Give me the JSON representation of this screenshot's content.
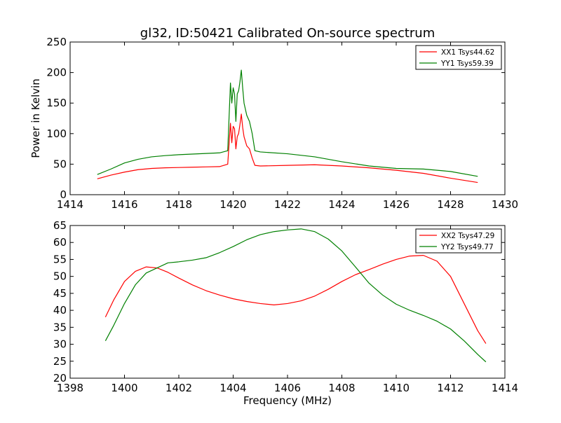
{
  "title": "gl32, ID:50421 Calibrated On-source spectrum",
  "chart_data": [
    {
      "type": "line",
      "ylabel": "Power in Kelvin",
      "xlabel": "",
      "xlim": [
        1414,
        1430
      ],
      "ylim": [
        0,
        250
      ],
      "x_ticks": [
        1414,
        1416,
        1418,
        1420,
        1422,
        1424,
        1426,
        1428,
        1430
      ],
      "y_ticks": [
        0,
        50,
        100,
        150,
        200,
        250
      ],
      "legend": "top-right",
      "series": [
        {
          "name": "XX1 Tsys44.62",
          "color": "#ff0000",
          "x": [
            1415.0,
            1415.5,
            1416.0,
            1416.5,
            1417.0,
            1417.5,
            1418.0,
            1418.5,
            1419.0,
            1419.5,
            1419.8,
            1419.9,
            1419.95,
            1420.0,
            1420.05,
            1420.1,
            1420.15,
            1420.2,
            1420.25,
            1420.3,
            1420.35,
            1420.4,
            1420.5,
            1420.6,
            1420.7,
            1420.8,
            1421.0,
            1422.0,
            1423.0,
            1424.0,
            1425.0,
            1426.0,
            1427.0,
            1428.0,
            1429.0
          ],
          "y": [
            26,
            32,
            37,
            41,
            43,
            44,
            44.5,
            45,
            45.5,
            46,
            50,
            117,
            85,
            112,
            108,
            75,
            95,
            100,
            115,
            132,
            110,
            95,
            80,
            75,
            60,
            48,
            47,
            48,
            49,
            47,
            44,
            40,
            35,
            27,
            20
          ]
        },
        {
          "name": "YY1 Tsys59.39",
          "color": "#008000",
          "x": [
            1415.0,
            1415.5,
            1416.0,
            1416.5,
            1417.0,
            1417.5,
            1418.0,
            1418.5,
            1419.0,
            1419.5,
            1419.8,
            1419.9,
            1419.95,
            1420.0,
            1420.05,
            1420.1,
            1420.15,
            1420.2,
            1420.25,
            1420.3,
            1420.35,
            1420.4,
            1420.5,
            1420.6,
            1420.7,
            1420.8,
            1421.0,
            1422.0,
            1423.0,
            1424.0,
            1425.0,
            1426.0,
            1427.0,
            1428.0,
            1429.0
          ],
          "y": [
            33,
            42,
            52,
            58,
            62,
            64,
            65.5,
            66.5,
            67.5,
            68.5,
            72,
            183,
            150,
            175,
            165,
            120,
            165,
            170,
            185,
            204,
            175,
            150,
            130,
            120,
            100,
            72,
            70,
            67,
            62,
            54,
            47,
            43,
            42,
            38,
            30
          ]
        }
      ]
    },
    {
      "type": "line",
      "xlabel": "Frequency (MHz)",
      "ylabel": "",
      "xlim": [
        1398,
        1414
      ],
      "ylim": [
        20,
        65
      ],
      "x_ticks": [
        1398,
        1400,
        1402,
        1404,
        1406,
        1408,
        1410,
        1412,
        1414
      ],
      "y_ticks": [
        20,
        25,
        30,
        35,
        40,
        45,
        50,
        55,
        60,
        65
      ],
      "legend": "top-right",
      "series": [
        {
          "name": "XX2 Tsys47.29",
          "color": "#ff0000",
          "x": [
            1399.3,
            1399.6,
            1400.0,
            1400.4,
            1400.8,
            1401.2,
            1401.6,
            1402.0,
            1402.5,
            1403.0,
            1403.5,
            1404.0,
            1404.5,
            1405.0,
            1405.5,
            1406.0,
            1406.5,
            1407.0,
            1407.5,
            1408.0,
            1408.5,
            1409.0,
            1409.5,
            1410.0,
            1410.5,
            1411.0,
            1411.5,
            1412.0,
            1412.5,
            1413.0,
            1413.3
          ],
          "y": [
            38,
            43,
            48.5,
            51.5,
            52.8,
            52.5,
            51.2,
            49.5,
            47.5,
            45.8,
            44.5,
            43.4,
            42.6,
            42.0,
            41.6,
            42.0,
            42.8,
            44.2,
            46.2,
            48.5,
            50.5,
            52.0,
            53.6,
            55.0,
            56.0,
            56.2,
            54.5,
            50.0,
            42.0,
            34.0,
            30.2
          ]
        },
        {
          "name": "YY2 Tsys49.77",
          "color": "#008000",
          "x": [
            1399.3,
            1399.6,
            1400.0,
            1400.4,
            1400.8,
            1401.2,
            1401.6,
            1402.0,
            1402.5,
            1403.0,
            1403.5,
            1404.0,
            1404.5,
            1405.0,
            1405.5,
            1406.0,
            1406.5,
            1407.0,
            1407.5,
            1408.0,
            1408.5,
            1409.0,
            1409.5,
            1410.0,
            1410.5,
            1411.0,
            1411.5,
            1412.0,
            1412.5,
            1413.0,
            1413.3
          ],
          "y": [
            31,
            35.5,
            42,
            47.5,
            51,
            52.5,
            54,
            54.3,
            54.8,
            55.5,
            57,
            58.8,
            60.8,
            62.3,
            63.2,
            63.7,
            64.0,
            63.2,
            61.0,
            57.5,
            52.8,
            48.0,
            44.5,
            41.8,
            40.0,
            38.5,
            36.8,
            34.5,
            31.0,
            27.0,
            24.8
          ]
        }
      ]
    }
  ]
}
